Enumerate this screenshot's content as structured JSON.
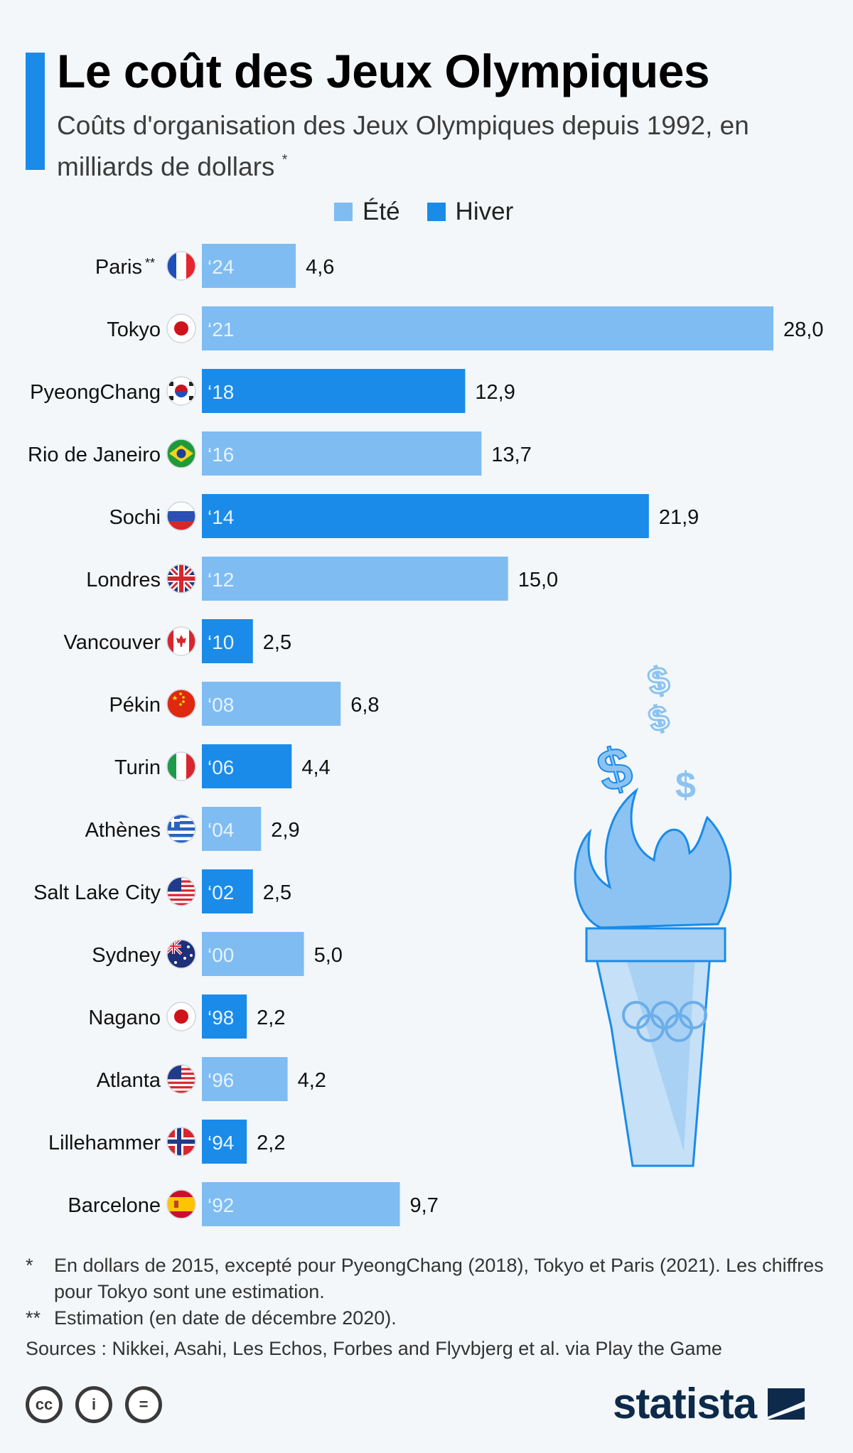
{
  "header": {
    "title": "Le coût des Jeux Olympiques",
    "subtitle": "Coûts d'organisation des Jeux Olympiques depuis 1992, en milliards de dollars",
    "subtitle_mark": "*"
  },
  "legend": {
    "items": [
      {
        "label": "Été",
        "color": "#7fbcf2"
      },
      {
        "label": "Hiver",
        "color": "#1a8be8"
      }
    ]
  },
  "chart_data": {
    "type": "bar",
    "orientation": "horizontal",
    "xlim": [
      0,
      28
    ],
    "grid": false,
    "legend_position": "top",
    "series": [
      {
        "name": "Été",
        "color": "#7fbcf2"
      },
      {
        "name": "Hiver",
        "color": "#1a8be8"
      }
    ],
    "categories": [
      "Paris **",
      "Tokyo",
      "PyeongChang",
      "Rio de Janeiro",
      "Sochi",
      "Londres",
      "Vancouver",
      "Pékin",
      "Turin",
      "Athènes",
      "Salt Lake City",
      "Sydney",
      "Nagano",
      "Atlanta",
      "Lillehammer",
      "Barcelone"
    ],
    "rows": [
      {
        "city": "Paris",
        "mark": "**",
        "year": "‘24",
        "value": 4.6,
        "value_label": "4,6",
        "season": "Été",
        "flag": "france-flag"
      },
      {
        "city": "Tokyo",
        "mark": "",
        "year": "‘21",
        "value": 28.0,
        "value_label": "28,0",
        "season": "Été",
        "flag": "japan-flag"
      },
      {
        "city": "PyeongChang",
        "mark": "",
        "year": "‘18",
        "value": 12.9,
        "value_label": "12,9",
        "season": "Hiver",
        "flag": "south-korea-flag"
      },
      {
        "city": "Rio de Janeiro",
        "mark": "",
        "year": "‘16",
        "value": 13.7,
        "value_label": "13,7",
        "season": "Été",
        "flag": "brazil-flag"
      },
      {
        "city": "Sochi",
        "mark": "",
        "year": "‘14",
        "value": 21.9,
        "value_label": "21,9",
        "season": "Hiver",
        "flag": "russia-flag"
      },
      {
        "city": "Londres",
        "mark": "",
        "year": "‘12",
        "value": 15.0,
        "value_label": "15,0",
        "season": "Été",
        "flag": "uk-flag"
      },
      {
        "city": "Vancouver",
        "mark": "",
        "year": "‘10",
        "value": 2.5,
        "value_label": "2,5",
        "season": "Hiver",
        "flag": "canada-flag"
      },
      {
        "city": "Pékin",
        "mark": "",
        "year": "‘08",
        "value": 6.8,
        "value_label": "6,8",
        "season": "Été",
        "flag": "china-flag"
      },
      {
        "city": "Turin",
        "mark": "",
        "year": "‘06",
        "value": 4.4,
        "value_label": "4,4",
        "season": "Hiver",
        "flag": "italy-flag"
      },
      {
        "city": "Athènes",
        "mark": "",
        "year": "‘04",
        "value": 2.9,
        "value_label": "2,9",
        "season": "Été",
        "flag": "greece-flag"
      },
      {
        "city": "Salt Lake City",
        "mark": "",
        "year": "‘02",
        "value": 2.5,
        "value_label": "2,5",
        "season": "Hiver",
        "flag": "usa-flag"
      },
      {
        "city": "Sydney",
        "mark": "",
        "year": "‘00",
        "value": 5.0,
        "value_label": "5,0",
        "season": "Été",
        "flag": "australia-flag"
      },
      {
        "city": "Nagano",
        "mark": "",
        "year": "‘98",
        "value": 2.2,
        "value_label": "2,2",
        "season": "Hiver",
        "flag": "japan-flag"
      },
      {
        "city": "Atlanta",
        "mark": "",
        "year": "‘96",
        "value": 4.2,
        "value_label": "4,2",
        "season": "Été",
        "flag": "usa-flag"
      },
      {
        "city": "Lillehammer",
        "mark": "",
        "year": "‘94",
        "value": 2.2,
        "value_label": "2,2",
        "season": "Hiver",
        "flag": "norway-flag"
      },
      {
        "city": "Barcelone",
        "mark": "",
        "year": "‘92",
        "value": 9.7,
        "value_label": "9,7",
        "season": "Été",
        "flag": "spain-flag"
      }
    ]
  },
  "illustration": {
    "icon": "olympic-torch-icon",
    "glyph": "$"
  },
  "footnotes": {
    "note1_mark": "*",
    "note1": "En dollars de 2015, excepté pour PyeongChang (2018), Tokyo et Paris (2021). Les chiffres pour Tokyo sont une estimation.",
    "note2_mark": "**",
    "note2": "Estimation (en date de décembre 2020).",
    "sources": "Sources : Nikkei, Asahi, Les Echos, Forbes and Flyvbjerg et al. via Play the Game"
  },
  "license_icons": [
    {
      "name": "cc-icon",
      "text": "cc"
    },
    {
      "name": "attribution-icon",
      "text": "i"
    },
    {
      "name": "no-derivatives-icon",
      "text": "="
    }
  ],
  "brand": {
    "name": "statista",
    "colors": {
      "dark": "#0d2a4a"
    }
  }
}
